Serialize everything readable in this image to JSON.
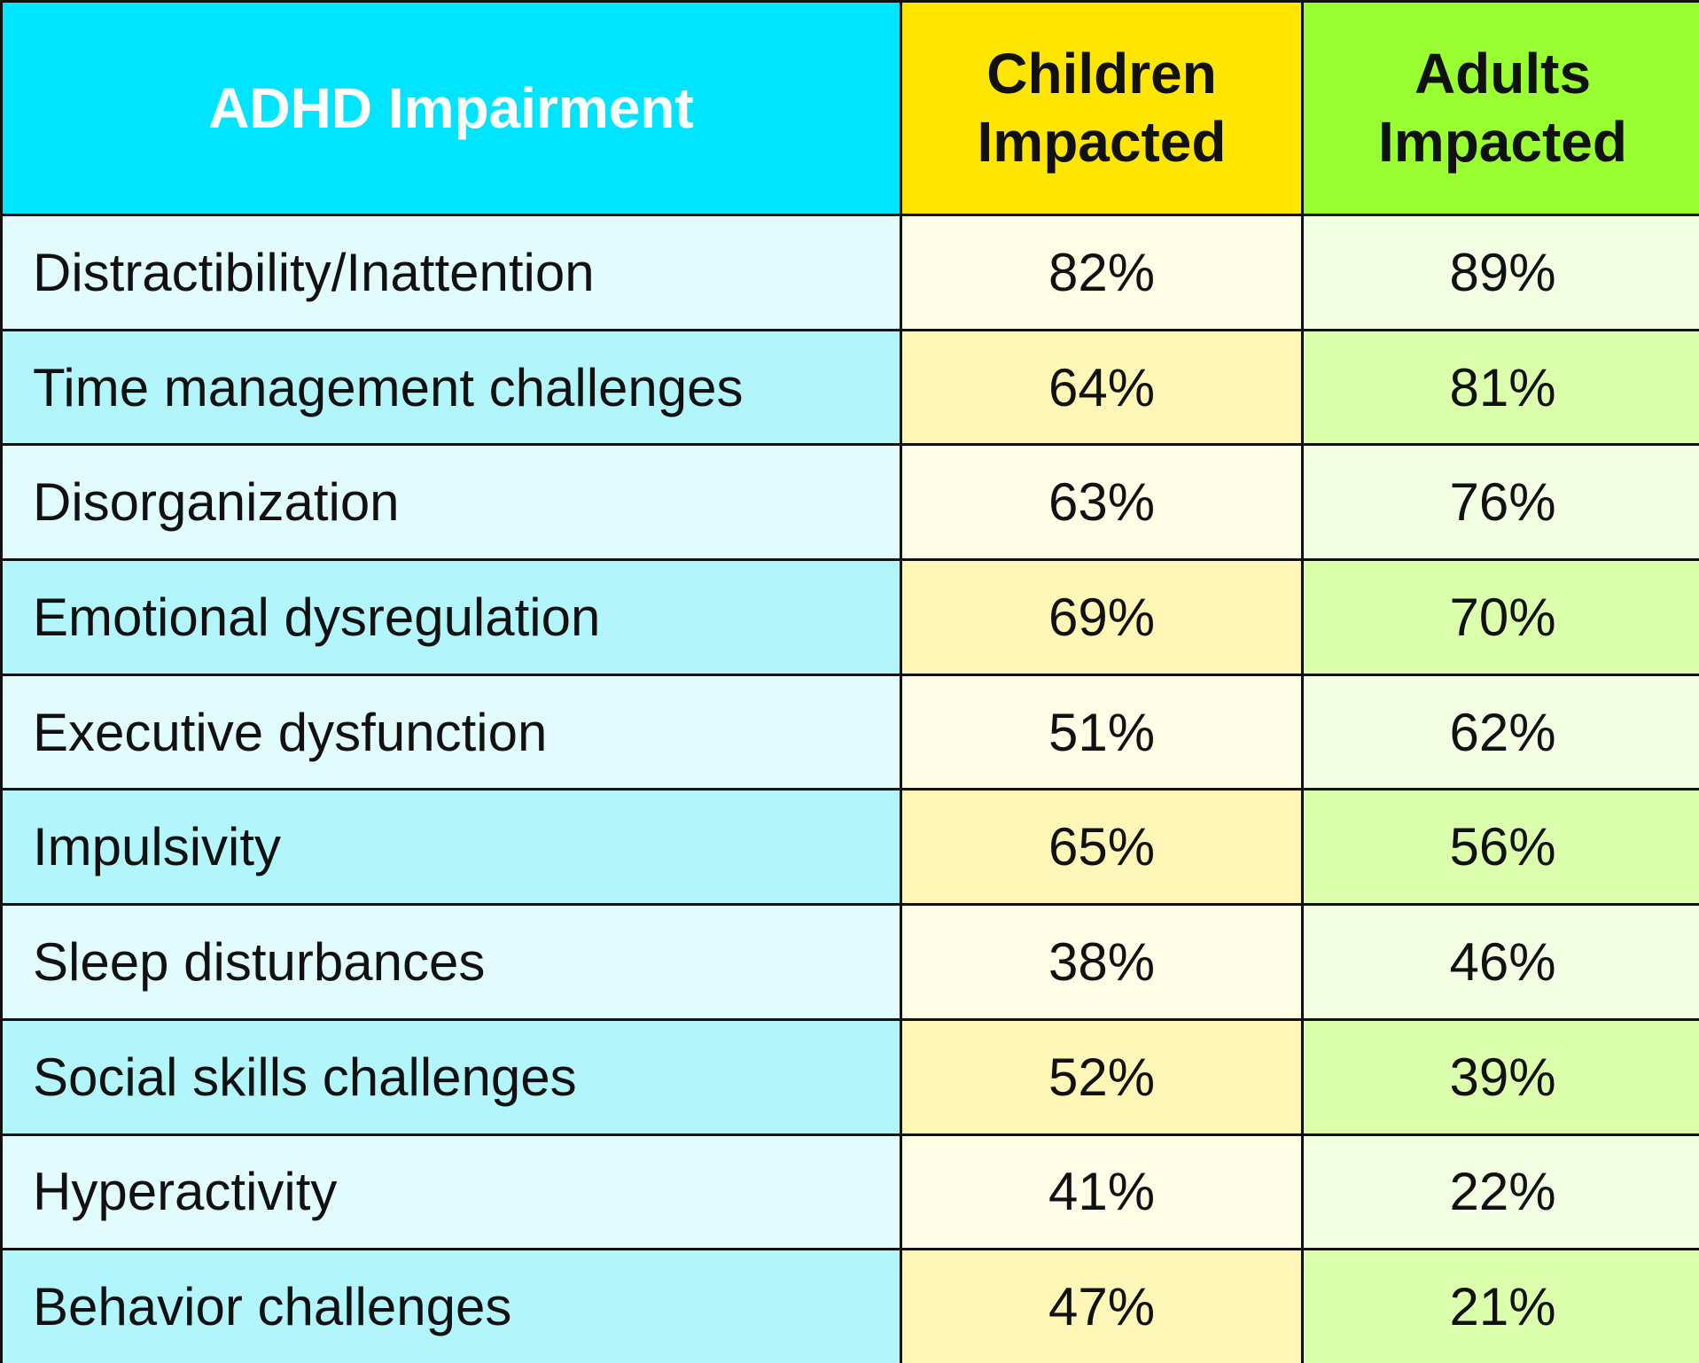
{
  "table": {
    "header": [
      "ADHD Impairment",
      "Children Impacted",
      "Adults Impacted"
    ],
    "rows": [
      [
        "Distractibility/Inattention",
        "82%",
        "89%"
      ],
      [
        "Time management challenges",
        "64%",
        "81%"
      ],
      [
        "Disorganization",
        "63%",
        "76%"
      ],
      [
        "Emotional dysregulation",
        "69%",
        "70%"
      ],
      [
        "Executive dysfunction",
        "51%",
        "62%"
      ],
      [
        "Impulsivity",
        "65%",
        "56%"
      ],
      [
        "Sleep disturbances",
        "38%",
        "46%"
      ],
      [
        "Social skills challenges",
        "52%",
        "39%"
      ],
      [
        "Hyperactivity",
        "41%",
        "22%"
      ],
      [
        "Behavior challenges",
        "47%",
        "21%"
      ]
    ]
  }
}
